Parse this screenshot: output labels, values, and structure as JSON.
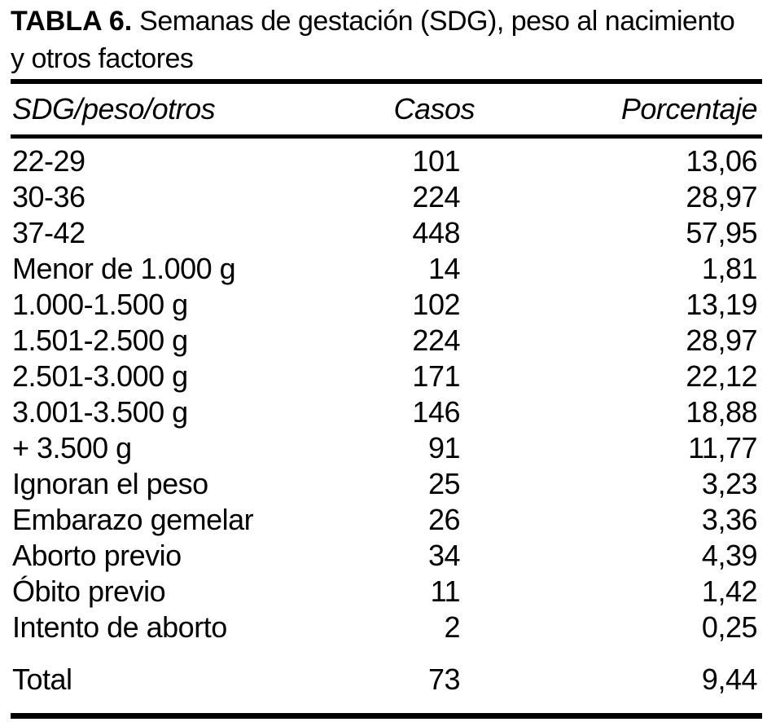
{
  "table": {
    "title_prefix": "TABLA 6.",
    "title_rest_line1": " Semanas de gestación (SDG), peso al nacimiento",
    "title_line2": "y otros factores",
    "columns": [
      "SDG/peso/otros",
      "Casos",
      "Porcentaje"
    ],
    "rows": [
      {
        "label": "22-29",
        "casos": "101",
        "porcentaje": "13,06"
      },
      {
        "label": "30-36",
        "casos": "224",
        "porcentaje": "28,97"
      },
      {
        "label": "37-42",
        "casos": "448",
        "porcentaje": "57,95"
      },
      {
        "label": "Menor de 1.000 g",
        "casos": "14",
        "porcentaje": "1,81"
      },
      {
        "label": "1.000-1.500 g",
        "casos": "102",
        "porcentaje": "13,19"
      },
      {
        "label": "1.501-2.500 g",
        "casos": "224",
        "porcentaje": "28,97"
      },
      {
        "label": "2.501-3.000 g",
        "casos": "171",
        "porcentaje": "22,12"
      },
      {
        "label": "3.001-3.500 g",
        "casos": "146",
        "porcentaje": "18,88"
      },
      {
        "label": "+ 3.500 g",
        "casos": "91",
        "porcentaje": "11,77"
      },
      {
        "label": "Ignoran el peso",
        "casos": "25",
        "porcentaje": "3,23"
      },
      {
        "label": "Embarazo gemelar",
        "casos": "26",
        "porcentaje": "3,36"
      },
      {
        "label": "Aborto previo",
        "casos": "34",
        "porcentaje": "4,39"
      },
      {
        "label": "Óbito previo",
        "casos": "11",
        "porcentaje": "1,42"
      },
      {
        "label": "Intento de aborto",
        "casos": "2",
        "porcentaje": "0,25"
      }
    ],
    "total_row": {
      "label": "Total",
      "casos": "73",
      "porcentaje": "9,44"
    },
    "text_color": "#000000",
    "background_color": "#ffffff"
  }
}
